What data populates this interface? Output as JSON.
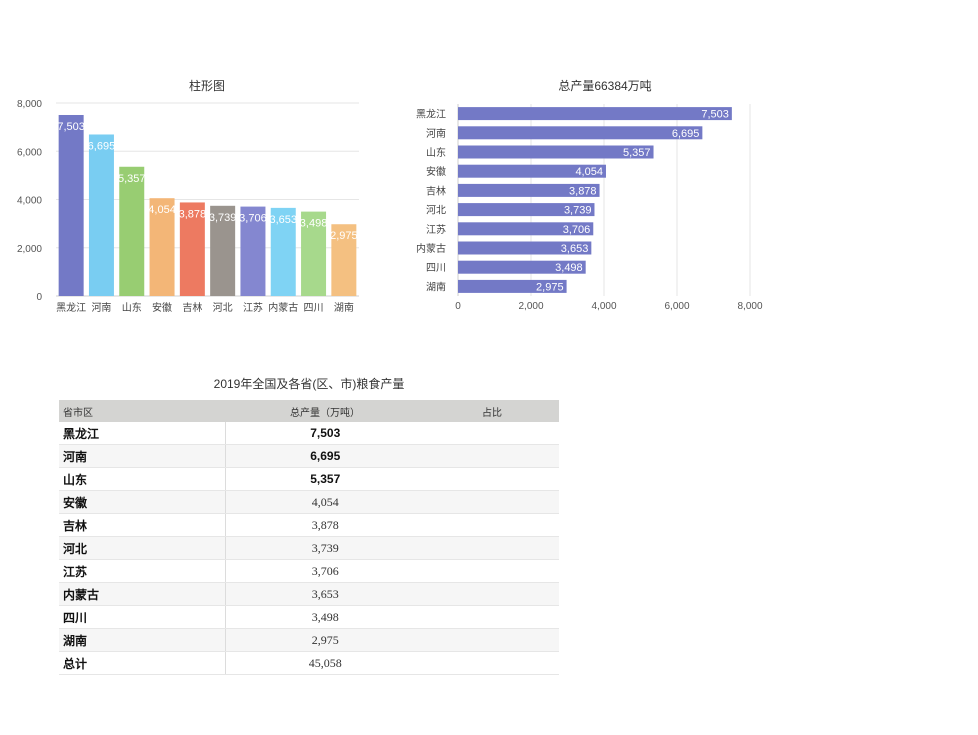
{
  "chart_data": [
    {
      "type": "bar",
      "title": "柱形图",
      "categories": [
        "黑龙江",
        "河南",
        "山东",
        "安徽",
        "吉林",
        "河北",
        "江苏",
        "内蒙古",
        "四川",
        "湖南"
      ],
      "values": [
        7503,
        6695,
        5357,
        4054,
        3878,
        3739,
        3706,
        3653,
        3498,
        2975
      ],
      "value_labels": [
        "7,503",
        "6,695",
        "5,357",
        "4,054",
        "3,878",
        "3,739",
        "3,706",
        "3,653",
        "3,498",
        "2,975"
      ],
      "colors": [
        "#7379c6",
        "#79cdf2",
        "#98cd72",
        "#f3b677",
        "#ed7a61",
        "#9a948e",
        "#8487d0",
        "#7fd3f4",
        "#a7d98c",
        "#f4c081"
      ],
      "yticks": [
        "0",
        "2,000",
        "4,000",
        "6,000",
        "8,000"
      ],
      "ylim": [
        0,
        8000
      ],
      "grid": true
    },
    {
      "type": "bar",
      "orientation": "horizontal",
      "title": "总产量66384万吨",
      "categories": [
        "黑龙江",
        "河南",
        "山东",
        "安徽",
        "吉林",
        "河北",
        "江苏",
        "内蒙古",
        "四川",
        "湖南"
      ],
      "values": [
        7503,
        6695,
        5357,
        4054,
        3878,
        3739,
        3706,
        3653,
        3498,
        2975
      ],
      "value_labels": [
        "7,503",
        "6,695",
        "5,357",
        "4,054",
        "3,878",
        "3,739",
        "3,706",
        "3,653",
        "3,498",
        "2,975"
      ],
      "color": "#7379c6",
      "xticks": [
        "0",
        "2,000",
        "4,000",
        "6,000",
        "8,000"
      ],
      "xlim": [
        0,
        8000
      ],
      "grid": true
    },
    {
      "type": "table",
      "title": "2019年全国及各省(区、市)粮食产量",
      "columns": [
        "省市区",
        "总产量（万吨）",
        "占比"
      ],
      "rows": [
        {
          "name": "黑龙江",
          "value": "7,503",
          "share": "",
          "bold": true
        },
        {
          "name": "河南",
          "value": "6,695",
          "share": "",
          "bold": true
        },
        {
          "name": "山东",
          "value": "5,357",
          "share": "",
          "bold": true
        },
        {
          "name": "安徽",
          "value": "4,054",
          "share": "",
          "bold": false
        },
        {
          "name": "吉林",
          "value": "3,878",
          "share": "",
          "bold": false
        },
        {
          "name": "河北",
          "value": "3,739",
          "share": "",
          "bold": false
        },
        {
          "name": "江苏",
          "value": "3,706",
          "share": "",
          "bold": false
        },
        {
          "name": "内蒙古",
          "value": "3,653",
          "share": "",
          "bold": false
        },
        {
          "name": "四川",
          "value": "3,498",
          "share": "",
          "bold": false
        },
        {
          "name": "湖南",
          "value": "2,975",
          "share": "",
          "bold": false
        },
        {
          "name": "总计",
          "value": "45,058",
          "share": "",
          "bold": false
        }
      ]
    }
  ]
}
